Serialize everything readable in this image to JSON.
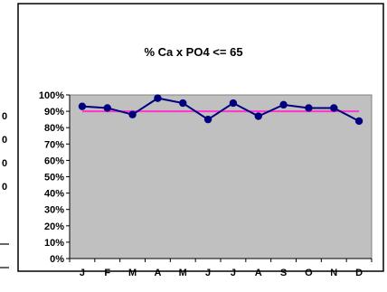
{
  "chart_data": {
    "type": "line",
    "title": "%  Ca x PO4 <= 65",
    "xlabel": "",
    "ylabel": "",
    "categories": [
      "J",
      "F",
      "M",
      "A",
      "M",
      "J",
      "J",
      "A",
      "S",
      "O",
      "N",
      "D"
    ],
    "series": [
      {
        "values": [
          93,
          92,
          88,
          98,
          95,
          85,
          95,
          87,
          94,
          92,
          92,
          84
        ],
        "color": "#00007f",
        "marker": "circle"
      },
      {
        "values": [
          90,
          90,
          90,
          90,
          90,
          90,
          90,
          90,
          90,
          90,
          90,
          90
        ],
        "color": "#ff33cc",
        "marker": "none"
      }
    ],
    "ylim": [
      0,
      100
    ],
    "yticks": [
      0,
      10,
      20,
      30,
      40,
      50,
      60,
      70,
      80,
      90,
      100
    ],
    "ytick_labels": [
      "0%",
      "10%",
      "20%",
      "30%",
      "40%",
      "50%",
      "60%",
      "70%",
      "80%",
      "90%",
      "100%"
    ],
    "grid": false,
    "legend": "none",
    "plot_background": "#c0c0c0"
  },
  "page": {
    "left_edge_glyphs": [
      "0",
      "0",
      "0",
      "0"
    ]
  }
}
